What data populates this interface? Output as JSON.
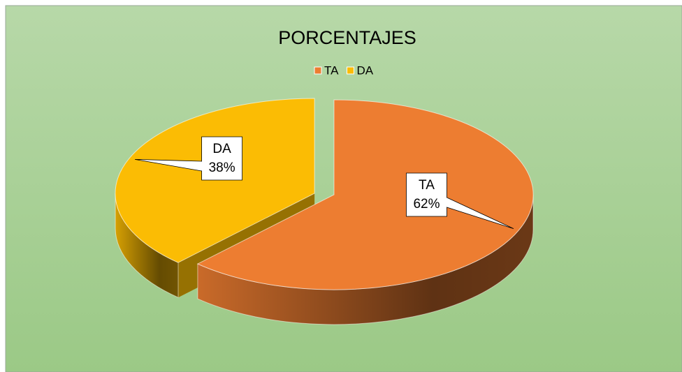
{
  "chart_data": {
    "type": "pie",
    "title": "PORCENTAJES",
    "three_d": true,
    "exploded": true,
    "categories": [
      "TA",
      "DA"
    ],
    "values": [
      62,
      38
    ],
    "value_labels": [
      "62%",
      "38%"
    ],
    "colors": [
      "#ed7d31",
      "#fbbc04"
    ],
    "legend": "top"
  }
}
